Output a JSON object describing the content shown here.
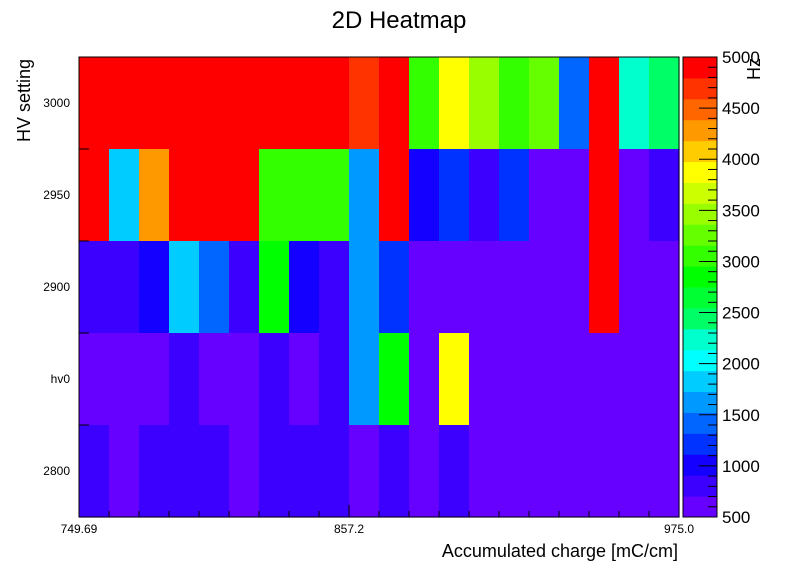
{
  "chart_data": {
    "type": "heatmap",
    "title": "2D Heatmap",
    "xlabel": "Accumulated charge [mC/cm]",
    "ylabel": "HV setting",
    "colorbar_label": "Hz",
    "x_tick_labels": [
      "749.69",
      "857.2",
      "975.0"
    ],
    "y_tick_labels": [
      "3000",
      "2950",
      "2900",
      "hv0",
      "2800"
    ],
    "y_rows_top_to_bottom": [
      "3000",
      "2950",
      "2900",
      "hv0",
      "2800"
    ],
    "n_columns": 20,
    "zlim": [
      500,
      5000
    ],
    "colorbar_ticks": [
      "500",
      "1000",
      "1500",
      "2000",
      "2500",
      "3000",
      "3500",
      "4000",
      "4500",
      "5000"
    ],
    "z": [
      [
        5000,
        5000,
        5000,
        5000,
        5000,
        5000,
        5000,
        5000,
        5000,
        4600,
        5000,
        3000,
        3800,
        3500,
        3000,
        3300,
        1500,
        5000,
        2200,
        2500
      ],
      [
        5000,
        1800,
        4300,
        5000,
        5000,
        5000,
        3000,
        3000,
        3000,
        1700,
        5000,
        1000,
        1200,
        900,
        1300,
        700,
        700,
        5000,
        700,
        900
      ],
      [
        900,
        900,
        1000,
        1800,
        1500,
        900,
        2800,
        1000,
        800,
        1700,
        1200,
        700,
        700,
        700,
        700,
        700,
        700,
        5000,
        700,
        700
      ],
      [
        700,
        700,
        700,
        900,
        700,
        700,
        900,
        700,
        900,
        1700,
        2800,
        700,
        3800,
        700,
        700,
        700,
        700,
        700,
        700,
        700
      ],
      [
        900,
        700,
        900,
        900,
        900,
        700,
        900,
        900,
        900,
        700,
        900,
        700,
        900,
        700,
        700,
        700,
        700,
        700,
        700,
        700
      ]
    ]
  }
}
